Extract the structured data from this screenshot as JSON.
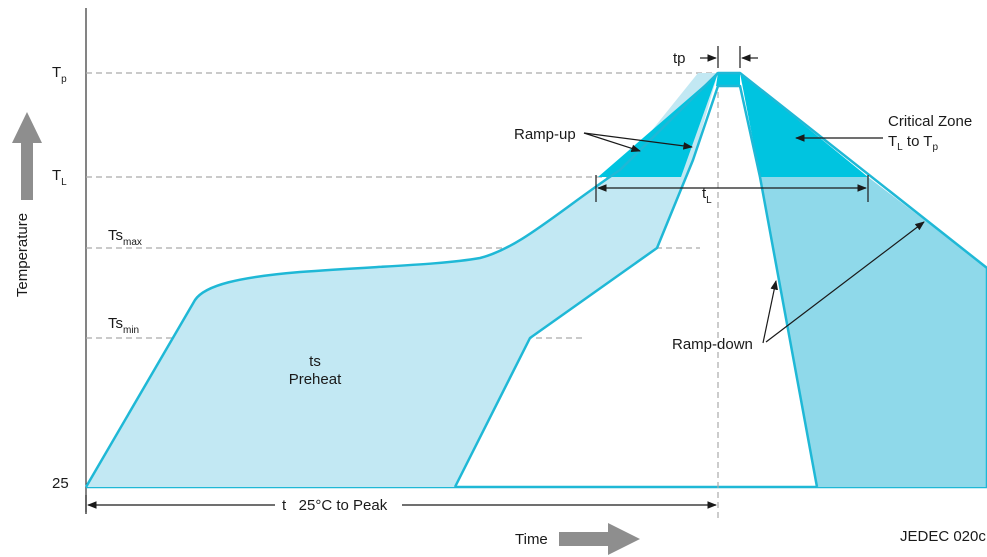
{
  "axes": {
    "y_label": "Temperature",
    "x_label": "Time",
    "y_ticks": {
      "tp": {
        "main": "T",
        "sub": "p"
      },
      "tl": {
        "main": "T",
        "sub": "L"
      },
      "tsmax": {
        "main": "Ts",
        "sub": "max"
      },
      "tsmin": {
        "main": "Ts",
        "sub": "min"
      },
      "base": "25"
    }
  },
  "labels": {
    "tp": "tp",
    "ramp_up": "Ramp-up",
    "critical_zone": "Critical Zone",
    "critical_range": {
      "a": "T",
      "a_sub": "L",
      "mid": " to T",
      "b_sub": "p"
    },
    "tl_duration": {
      "main": "t",
      "sub": "L"
    },
    "ts": "ts",
    "preheat": "Preheat",
    "ramp_down": "Ramp-down",
    "t_to_peak": "t   25°C to Peak",
    "source": "JEDEC 020c"
  },
  "colors": {
    "curve": "#1fb8d6",
    "preheat_fill": "#c2e8f3",
    "critical_fill": "#00c4e0",
    "ramp_down_fill": "#8fd9ea",
    "guide": "#aaaaaa",
    "axis": "#333333",
    "arrow_gray": "#8e8e8e"
  }
}
